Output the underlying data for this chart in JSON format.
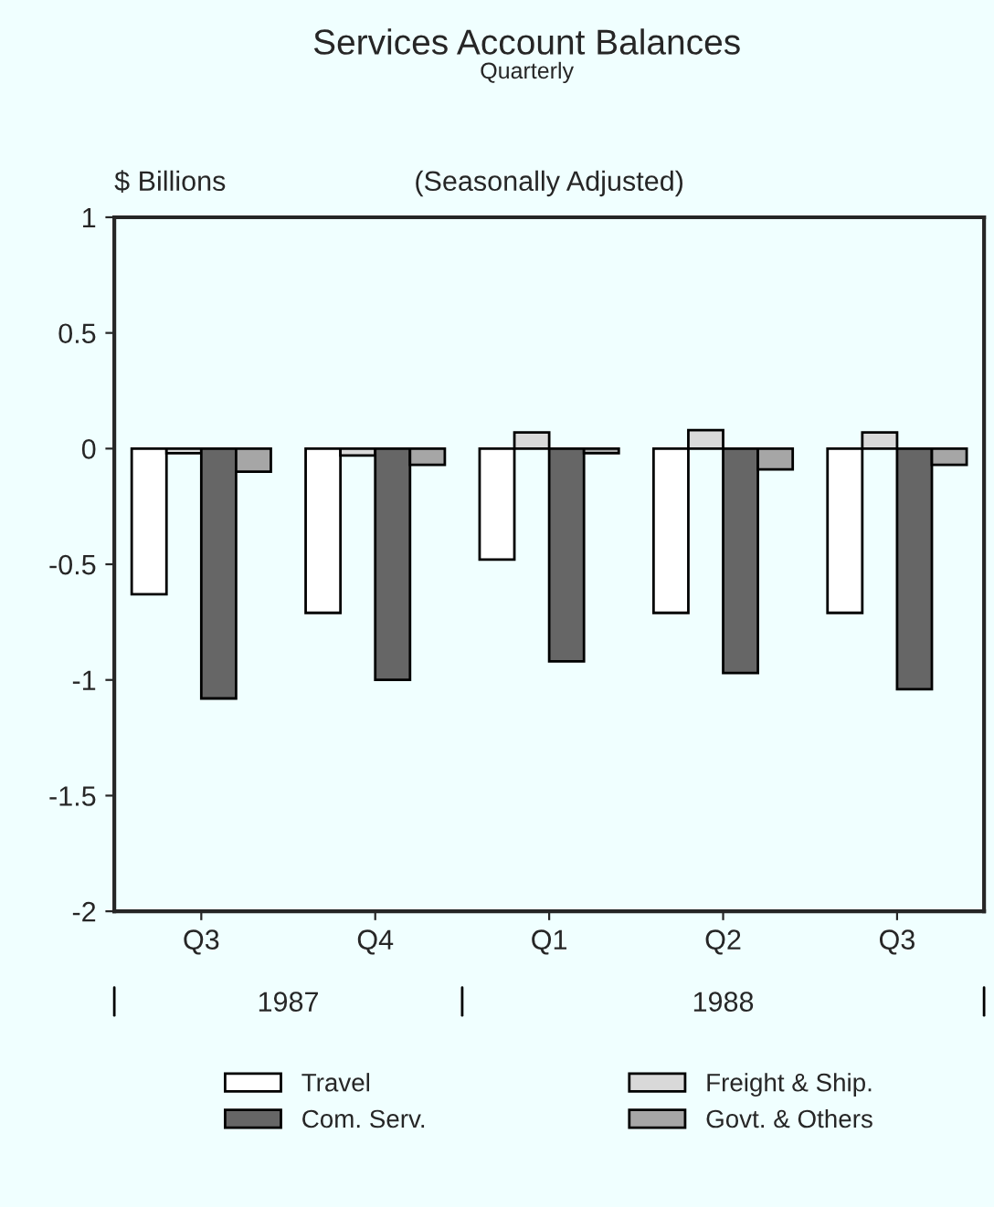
{
  "chart_data": {
    "type": "bar",
    "title": "Services Account Balances",
    "subtitle": "Quarterly",
    "ylabel": "$ Billions",
    "categories": [
      "Q3",
      "Q4",
      "Q1",
      "Q2",
      "Q3"
    ],
    "series": [
      {
        "name": "Travel",
        "color": "#ffffff",
        "values": [
          -0.63,
          -0.71,
          -0.48,
          -0.71,
          -0.71
        ]
      },
      {
        "name": "Freight & Ship.",
        "color": "#d9d9d9",
        "values": [
          -0.02,
          -0.03,
          0.07,
          0.08,
          0.07
        ]
      },
      {
        "name": "Com. Serv.",
        "color": "#666666",
        "values": [
          -1.08,
          -1.0,
          -0.92,
          -0.97,
          -1.04
        ]
      },
      {
        "name": "Govt. & Others",
        "color": "#a6a6a6",
        "values": [
          -0.1,
          -0.07,
          -0.02,
          -0.09,
          -0.07
        ]
      }
    ],
    "annotations": [
      "(Seasonally Adjusted)",
      "1987",
      "1988"
    ],
    "ylim": [
      -2,
      1
    ],
    "yticks": [
      1,
      0.5,
      0,
      -0.5,
      -1,
      -1.5,
      -2
    ],
    "grid": false,
    "legend": "bottom"
  }
}
